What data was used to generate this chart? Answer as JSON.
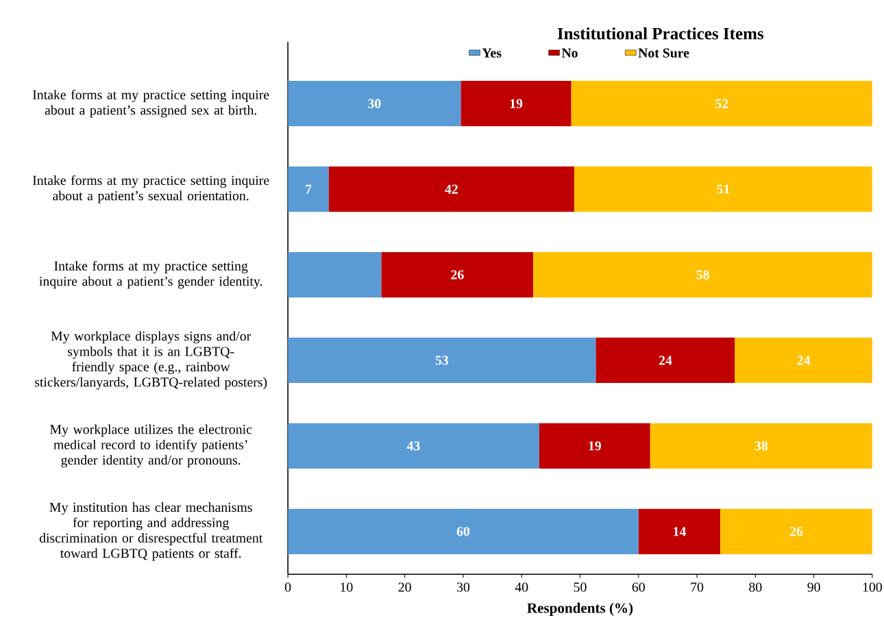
{
  "chart_data": {
    "type": "bar",
    "orientation": "horizontal",
    "stacked": true,
    "title": "Institutional Practices Items",
    "xlabel": "Respondents (%)",
    "categories": [
      "Intake forms at my practice setting inquire about a patient’s assigned sex at birth.",
      "Intake forms at my practice setting inquire about a patient’s sexual orientation.",
      "Intake forms at my practice setting inquire about a patient’s gender identity.",
      "My workplace displays signs and/or symbols that it is an LGBTQ-friendly space (e.g., rainbow stickers/lanyards, LGBTQ-related posters)",
      "My workplace utilizes the electronic medical record to identify patients’ gender identity and/or pronouns.",
      "My institution has clear mechanisms for reporting and addressing discrimination or disrespectful treatment toward LGBTQ patients or staff."
    ],
    "series": [
      {
        "name": "Yes",
        "color": "#5b9bd5",
        "values": [
          29.6,
          7,
          16,
          52.7,
          43,
          60
        ],
        "value_labels": [
          "30",
          "7",
          null,
          "53",
          "43",
          "60"
        ]
      },
      {
        "name": "No",
        "color": "#c00000",
        "values": [
          18.9,
          42,
          26,
          23.8,
          19,
          14
        ],
        "value_labels": [
          "19",
          "42",
          "26",
          "24",
          "19",
          "14"
        ]
      },
      {
        "name": "Not Sure",
        "color": "#ffc000",
        "values": [
          51.5,
          51,
          58,
          23.5,
          38,
          26
        ],
        "value_labels": [
          "52",
          "51",
          "58",
          "24",
          "38",
          "26"
        ]
      }
    ],
    "xlim": [
      0,
      100
    ],
    "xticks": [
      0,
      10,
      20,
      30,
      40,
      50,
      60,
      70,
      80,
      90,
      100
    ],
    "legend": "top",
    "grid": false
  }
}
